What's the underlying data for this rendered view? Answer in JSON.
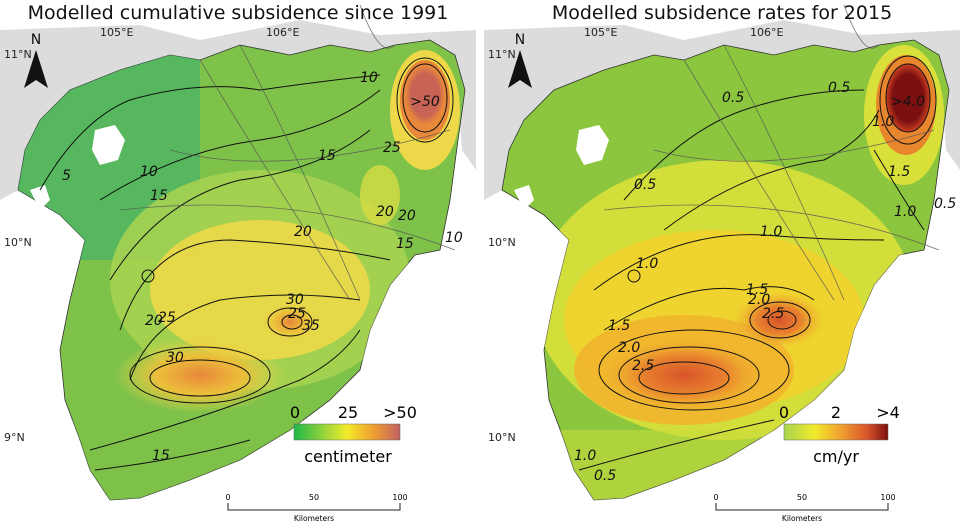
{
  "panels": [
    {
      "id": "cumulative",
      "title": "Modelled cumulative subsidence since 1991",
      "legend": {
        "min_label": "0",
        "mid_label": "25",
        "max_label": ">50",
        "unit": "centimeter",
        "colors": [
          "#1fb84a",
          "#9ed63a",
          "#f2ea2c",
          "#f0a030",
          "#c06060"
        ]
      },
      "peak_label": ">50",
      "contour_labels": [
        "5",
        "10",
        "10",
        "10",
        "15",
        "15",
        "15",
        "15",
        "20",
        "20",
        "20",
        "20",
        "25",
        "25",
        "25",
        "30",
        "30",
        "35"
      ],
      "land_colors": {
        "low": "#45b266",
        "mid": "#a8d450",
        "high": "#ecd848",
        "peak": "#e8883a",
        "max": "#c96355"
      }
    },
    {
      "id": "rates",
      "title": "Modelled subsidence rates for 2015",
      "legend": {
        "min_label": "0",
        "mid_label": "2",
        "max_label": ">4",
        "unit": "cm/yr",
        "colors": [
          "#a8d450",
          "#f2ea2c",
          "#f0a030",
          "#d8542a",
          "#7c1010"
        ]
      },
      "peak_label": ">4.0",
      "contour_labels": [
        "0.5",
        "0.5",
        "0.5",
        "0.5",
        "0.5",
        "1.0",
        "1.0",
        "1.0",
        "1.0",
        "1.0",
        "1.5",
        "1.5",
        "1.5",
        "2.0",
        "2.0",
        "2.5",
        "2.5"
      ],
      "land_colors": {
        "low": "#8bc63e",
        "mid": "#d9e03a",
        "high": "#f0b62e",
        "peak": "#e06a2a",
        "max": "#7c1010"
      }
    }
  ],
  "graticule": {
    "lon_labels": [
      "105°E",
      "106°E"
    ],
    "lat_labels": [
      "11°N",
      "10°N",
      "9°N"
    ]
  },
  "north_arrow": {
    "label": "N"
  },
  "scalebar": {
    "ticks": [
      "0",
      "50",
      "100"
    ],
    "unit": "Kilometers"
  }
}
